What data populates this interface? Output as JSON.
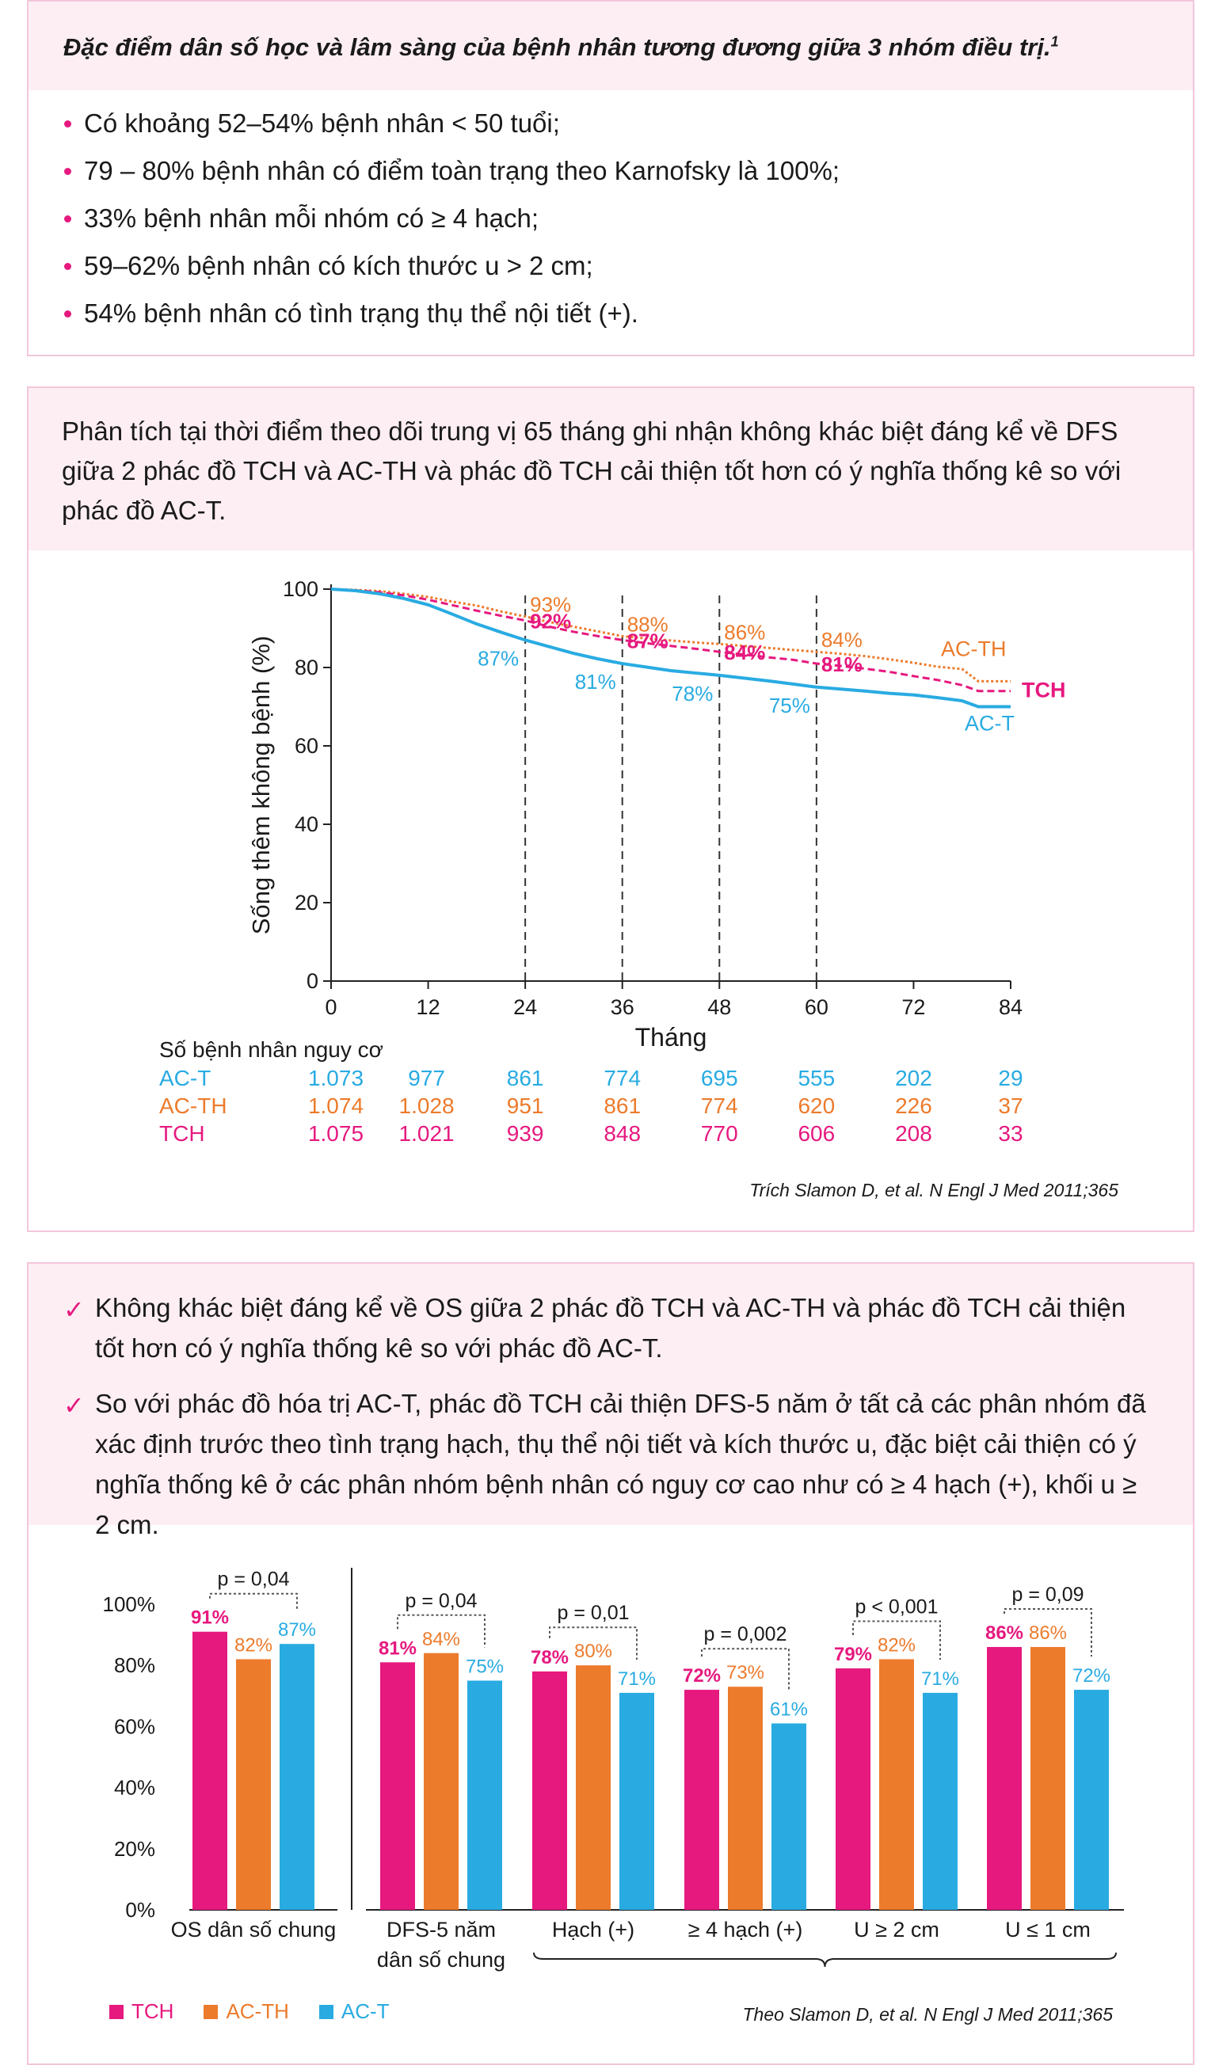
{
  "section1": {
    "title": "Đặc điểm dân số học và lâm sàng của bệnh nhân tương đương giữa 3 nhóm điều trị.",
    "title_sup": "1",
    "bullets": [
      "Có khoảng 52–54% bệnh nhân < 50 tuổi;",
      "79 – 80% bệnh nhân có điểm toàn trạng theo Karnofsky là 100%;",
      "33% bệnh nhân mỗi nhóm có ≥ 4 hạch;",
      "59–62% bệnh nhân có kích thước u > 2 cm;",
      "54% bệnh nhân có tình trạng thụ thể nội tiết (+)."
    ]
  },
  "section2": {
    "intro": "Phân tích tại thời điểm theo dõi trung vị 65 tháng ghi nhận không khác biệt đáng kể về DFS giữa 2 phác đồ TCH và AC-TH và phác đồ TCH cải thiện tốt hơn có ý nghĩa thống kê so với phác đồ AC-T.",
    "risk_title": "Số bệnh nhân nguy cơ",
    "risk_rows": [
      {
        "label": "AC-T",
        "values": [
          "1.073",
          "977",
          "861",
          "774",
          "695",
          "555",
          "202",
          "29"
        ]
      },
      {
        "label": "AC-TH",
        "values": [
          "1.074",
          "1.028",
          "951",
          "861",
          "774",
          "620",
          "226",
          "37"
        ]
      },
      {
        "label": "TCH",
        "values": [
          "1.075",
          "1.021",
          "939",
          "848",
          "770",
          "606",
          "208",
          "33"
        ]
      }
    ],
    "citation": "Trích Slamon D, et al. N Engl J Med 2011;365"
  },
  "section3": {
    "checks": [
      "Không khác biệt đáng kể về OS giữa 2 phác đồ TCH và AC-TH và phác đồ TCH cải thiện tốt hơn có ý nghĩa thống kê so với phác đồ AC-T.",
      "So với phác đồ hóa trị AC-T, phác đồ TCH cải thiện DFS-5 năm ở tất cả các phân nhóm đã xác định trước theo tình trạng hạch, thụ thể nội tiết và kích thước u, đặc biệt cải thiện có ý nghĩa thống kê ở các phân nhóm bệnh nhân có nguy cơ cao như có ≥ 4 hạch (+), khối u ≥ 2 cm."
    ],
    "group_label": "DFS-5 năm",
    "citation": "Theo Slamon D, et al. N Engl J Med 2011;365"
  },
  "colors": {
    "TCH": "#e6197f",
    "AC-TH": "#ec7b2c",
    "AC-T": "#29abe2"
  },
  "chart_data": [
    {
      "type": "line",
      "xlabel": "Tháng",
      "ylabel": "Sống thêm không bệnh (%)",
      "xlim": [
        0,
        84
      ],
      "ylim": [
        0,
        100
      ],
      "xticks": [
        0,
        12,
        24,
        36,
        48,
        60,
        72,
        84
      ],
      "yticks": [
        0,
        20,
        40,
        60,
        80,
        100
      ],
      "reference_lines_x": [
        24,
        36,
        48,
        60
      ],
      "series": [
        {
          "name": "AC-TH",
          "style": "dotted",
          "x": [
            0,
            3,
            6,
            9,
            12,
            15,
            18,
            21,
            24,
            27,
            30,
            33,
            36,
            39,
            42,
            45,
            48,
            51,
            54,
            57,
            60,
            63,
            66,
            69,
            72,
            75,
            78,
            80,
            82,
            84
          ],
          "y": [
            100,
            99.8,
            99.5,
            98.8,
            98,
            96.8,
            95.8,
            94.3,
            93,
            91.6,
            90.4,
            89.2,
            88,
            87.4,
            86.9,
            86.4,
            86,
            85.5,
            85,
            84.5,
            84,
            83.5,
            82.9,
            82.1,
            81.2,
            80.2,
            79.6,
            76.5,
            76.5,
            76.5
          ],
          "labels": [
            {
              "x": 24,
              "text": "93%"
            },
            {
              "x": 36,
              "text": "88%"
            },
            {
              "x": 48,
              "text": "86%"
            },
            {
              "x": 60,
              "text": "84%"
            }
          ]
        },
        {
          "name": "TCH",
          "style": "dashed",
          "x": [
            0,
            3,
            6,
            9,
            12,
            15,
            18,
            21,
            24,
            27,
            30,
            33,
            36,
            39,
            42,
            45,
            48,
            51,
            54,
            57,
            60,
            63,
            66,
            69,
            72,
            75,
            78,
            80,
            82,
            84
          ],
          "y": [
            100,
            99.7,
            99.2,
            98.4,
            97.3,
            95.9,
            94.5,
            93.2,
            92,
            90.4,
            89.1,
            88,
            87,
            86.2,
            85.5,
            84.8,
            84,
            83.3,
            82.6,
            82,
            81,
            80.4,
            79.7,
            78.9,
            77.8,
            76.8,
            75.5,
            74,
            74,
            74
          ],
          "labels": [
            {
              "x": 24,
              "text": "92%"
            },
            {
              "x": 36,
              "text": "87%"
            },
            {
              "x": 48,
              "text": "84%"
            },
            {
              "x": 60,
              "text": "81%"
            }
          ]
        },
        {
          "name": "AC-T",
          "style": "solid",
          "x": [
            0,
            3,
            6,
            9,
            12,
            15,
            18,
            21,
            24,
            27,
            30,
            33,
            36,
            39,
            42,
            45,
            48,
            51,
            54,
            57,
            60,
            63,
            66,
            69,
            72,
            75,
            78,
            80,
            82,
            84
          ],
          "y": [
            100,
            99.6,
            98.8,
            97.6,
            96,
            93.6,
            91.1,
            89,
            87,
            85.3,
            83.6,
            82.2,
            81,
            80.1,
            79.2,
            78.6,
            78,
            77.3,
            76.6,
            75.8,
            75,
            74.5,
            74,
            73.4,
            73,
            72.3,
            71.5,
            70,
            70,
            70
          ],
          "labels": [
            {
              "x": 24,
              "text": "87%"
            },
            {
              "x": 36,
              "text": "81%"
            },
            {
              "x": 48,
              "text": "78%"
            },
            {
              "x": 60,
              "text": "75%"
            }
          ]
        }
      ]
    },
    {
      "type": "bar",
      "ylim": [
        0,
        100
      ],
      "yticks": [
        "0%",
        "20%",
        "40%",
        "60%",
        "80%",
        "100%"
      ],
      "categories": [
        "OS dân số chung",
        "DFS-5 năm\ndân số chung",
        "Hạch (+)",
        "≥ 4 hạch (+)",
        "U ≥ 2 cm",
        "U ≤ 1 cm"
      ],
      "series": [
        {
          "name": "TCH",
          "values": [
            91,
            81,
            78,
            72,
            79,
            86
          ]
        },
        {
          "name": "AC-TH",
          "values": [
            82,
            84,
            80,
            73,
            82,
            86
          ]
        },
        {
          "name": "AC-T",
          "values": [
            87,
            75,
            71,
            61,
            71,
            72
          ]
        }
      ],
      "pvalues": [
        "p = 0,04",
        "p = 0,04",
        "p = 0,01",
        "p = 0,002",
        "p < 0,001",
        "p = 0,09"
      ]
    }
  ]
}
